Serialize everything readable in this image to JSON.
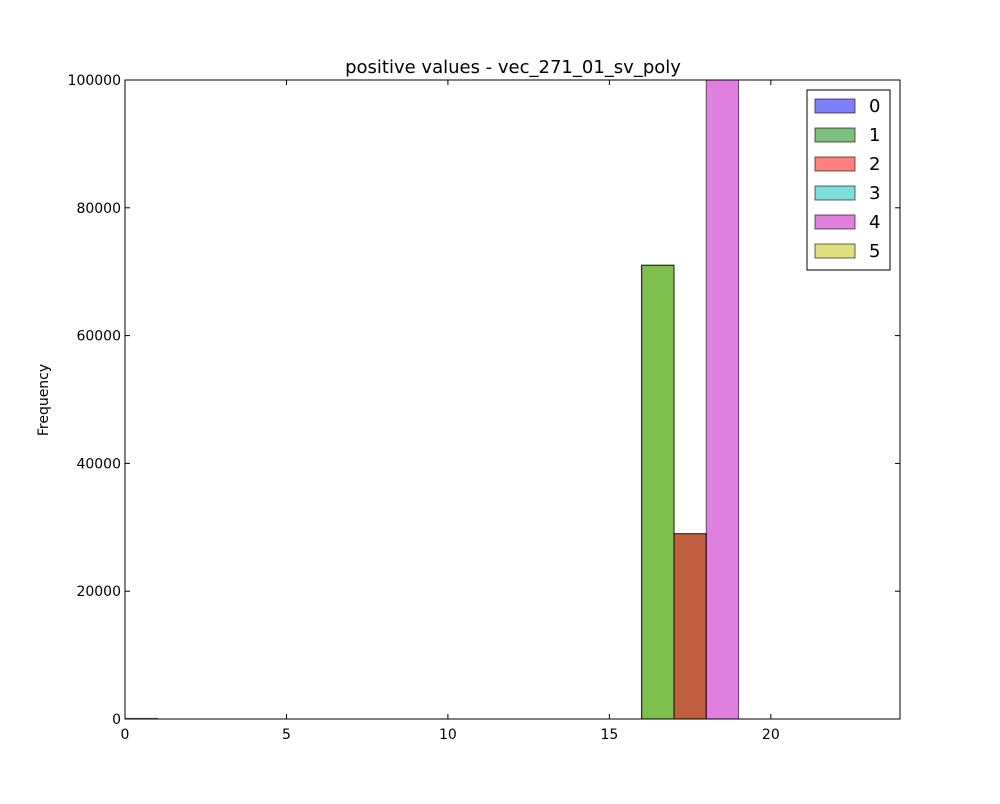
{
  "chart_data": {
    "type": "bar",
    "title": "positive values - vec_271_01_sv_poly",
    "xlabel": "",
    "ylabel": "Frequency",
    "xlim": [
      0,
      24
    ],
    "ylim": [
      0,
      100000
    ],
    "xticks": [
      0,
      5,
      10,
      15,
      20
    ],
    "yticks": [
      0,
      20000,
      40000,
      60000,
      80000,
      100000
    ],
    "grid": false,
    "legend_position": "top-right",
    "series": [
      {
        "name": "0",
        "color": "#0000ff",
        "bins": [
          {
            "x0": 0,
            "x1": 1,
            "value": 0
          }
        ]
      },
      {
        "name": "1",
        "color": "#008000",
        "bins": [
          {
            "x0": 16,
            "x1": 17,
            "value": 71000
          },
          {
            "x0": 17,
            "x1": 18,
            "value": 29000
          }
        ]
      },
      {
        "name": "2",
        "color": "#ff0000",
        "bins": [
          {
            "x0": 17,
            "x1": 18,
            "value": 29000
          }
        ]
      },
      {
        "name": "3",
        "color": "#00bfbf",
        "bins": [
          {
            "x0": 16,
            "x1": 17,
            "value": 71000
          }
        ]
      },
      {
        "name": "4",
        "color": "#bf00bf",
        "bins": [
          {
            "x0": 18,
            "x1": 19,
            "value": 100000
          }
        ]
      },
      {
        "name": "5",
        "color": "#bfbf00",
        "bins": [
          {
            "x0": 16,
            "x1": 17,
            "value": 71000
          }
        ]
      }
    ]
  }
}
